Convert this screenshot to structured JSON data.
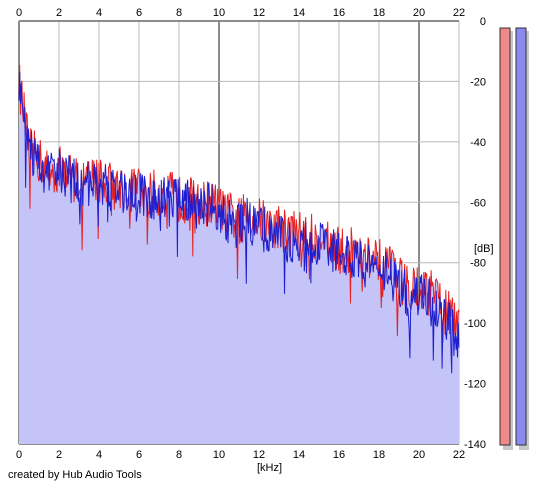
{
  "credit": "created by Hub Audio Tools",
  "chart_data": {
    "type": "area",
    "xlabel": "[kHz]",
    "ylabel": "[dB]",
    "xlim": [
      0,
      22
    ],
    "ylim": [
      -140,
      0
    ],
    "x_ticks": [
      "0",
      "2",
      "4",
      "6",
      "8",
      "10",
      "12",
      "14",
      "16",
      "18",
      "20",
      "22"
    ],
    "y_ticks": [
      "0",
      "-20",
      "-40",
      "-60",
      "-80",
      "-100",
      "-120",
      "-140"
    ],
    "grid": true,
    "series": [
      {
        "color": "#e82020",
        "x": [
          0,
          0.5,
          1,
          1.5,
          2,
          2.5,
          3,
          3.5,
          4,
          4.5,
          5,
          5.5,
          6,
          6.5,
          7,
          7.5,
          8,
          8.5,
          9,
          9.5,
          10,
          10.5,
          11,
          11.5,
          12,
          12.5,
          13,
          13.5,
          14,
          14.5,
          15,
          15.5,
          16,
          16.5,
          17,
          17.5,
          18,
          18.5,
          19,
          19.5,
          20,
          20.5,
          21,
          21.5,
          22
        ],
        "values": [
          -20,
          -42,
          -46,
          -50,
          -49,
          -51,
          -53,
          -53,
          -52,
          -54,
          -55,
          -55,
          -56,
          -57,
          -57,
          -57,
          -59,
          -59,
          -61,
          -60,
          -62,
          -64,
          -66,
          -64,
          -66,
          -68,
          -68,
          -70,
          -70,
          -72,
          -71,
          -74,
          -76,
          -76,
          -75,
          -79,
          -80,
          -82,
          -86,
          -87,
          -88,
          -90,
          -92,
          -96,
          -104
        ]
      },
      {
        "color": "#1f1fcf",
        "x": [
          0,
          0.5,
          1,
          1.5,
          2,
          2.5,
          3,
          3.5,
          4,
          4.5,
          5,
          5.5,
          6,
          6.5,
          7,
          7.5,
          8,
          8.5,
          9,
          9.5,
          10,
          10.5,
          11,
          11.5,
          12,
          12.5,
          13,
          13.5,
          14,
          14.5,
          15,
          15.5,
          16,
          16.5,
          17,
          17.5,
          18,
          18.5,
          19,
          19.5,
          20,
          20.5,
          21,
          21.5,
          22
        ],
        "values": [
          -20,
          -43,
          -47,
          -51,
          -50,
          -52,
          -54,
          -54,
          -53,
          -55,
          -56,
          -56,
          -57,
          -58,
          -58,
          -58,
          -60,
          -60,
          -62,
          -61,
          -64,
          -66,
          -68,
          -66,
          -68,
          -70,
          -70,
          -72,
          -72,
          -74,
          -73,
          -76,
          -78,
          -79,
          -78,
          -82,
          -83,
          -85,
          -89,
          -90,
          -91,
          -93,
          -95,
          -99,
          -108
        ]
      }
    ],
    "meters": [
      {
        "color": "#f08a8a"
      },
      {
        "color": "#8a8af0"
      }
    ]
  }
}
